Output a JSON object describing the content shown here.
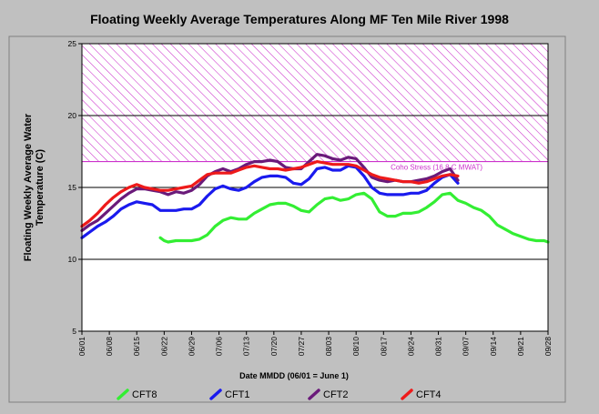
{
  "chart_data": {
    "type": "line",
    "title": "Floating Weekly Average Temperatures Along MF Ten Mile River 1998",
    "xlabel": "Date MMDD (06/01 = June 1)",
    "ylabel": "Floating Weekly Average Water Temperature (C)",
    "x_ticks": [
      "06/01",
      "06/08",
      "06/15",
      "06/22",
      "06/29",
      "07/06",
      "07/13",
      "07/20",
      "07/27",
      "08/03",
      "08/10",
      "08/17",
      "08/24",
      "08/31",
      "09/07",
      "09/14",
      "09/21",
      "09/28"
    ],
    "xlim": [
      0,
      119
    ],
    "ylim": [
      5,
      25
    ],
    "y_ticks": [
      5,
      10,
      15,
      20,
      25
    ],
    "grid_y": [
      10,
      15,
      20
    ],
    "threshold": {
      "label": "Coho Stress (16.8 C MWAT)",
      "value": 16.8,
      "color": "#cc33cc"
    },
    "hatched_band": [
      16.8,
      25
    ],
    "legend_position": "bottom",
    "series": [
      {
        "name": "CFT8",
        "color": "#33ee33",
        "x": [
          20,
          21,
          22,
          24,
          26,
          28,
          30,
          32,
          34,
          36,
          38,
          40,
          42,
          44,
          46,
          48,
          50,
          52,
          54,
          56,
          58,
          60,
          62,
          64,
          66,
          68,
          70,
          72,
          74,
          76,
          78,
          80,
          82,
          84,
          86,
          88,
          90,
          92,
          94,
          96,
          98,
          100,
          102,
          104,
          106,
          108,
          110,
          112,
          114,
          116,
          118,
          119
        ],
        "y": [
          11.5,
          11.3,
          11.2,
          11.3,
          11.3,
          11.3,
          11.4,
          11.7,
          12.3,
          12.7,
          12.9,
          12.8,
          12.8,
          13.2,
          13.5,
          13.8,
          13.9,
          13.9,
          13.7,
          13.4,
          13.3,
          13.8,
          14.2,
          14.3,
          14.1,
          14.2,
          14.5,
          14.6,
          14.2,
          13.3,
          13.0,
          13.0,
          13.2,
          13.2,
          13.3,
          13.6,
          14.0,
          14.5,
          14.6,
          14.1,
          13.9,
          13.6,
          13.4,
          13.0,
          12.4,
          12.1,
          11.8,
          11.6,
          11.4,
          11.3,
          11.3,
          11.2
        ]
      },
      {
        "name": "CFT1",
        "color": "#1a1aee",
        "x": [
          0,
          2,
          4,
          6,
          8,
          10,
          12,
          14,
          16,
          18,
          20,
          22,
          24,
          26,
          28,
          30,
          32,
          34,
          36,
          38,
          40,
          42,
          44,
          46,
          48,
          50,
          52,
          54,
          56,
          58,
          60,
          62,
          64,
          66,
          68,
          70,
          72,
          74,
          76,
          78,
          80,
          82,
          84,
          86,
          88,
          90,
          92,
          94,
          96
        ],
        "y": [
          11.5,
          11.9,
          12.3,
          12.6,
          13.0,
          13.5,
          13.8,
          14.0,
          13.9,
          13.8,
          13.4,
          13.4,
          13.4,
          13.5,
          13.5,
          13.8,
          14.4,
          14.9,
          15.1,
          14.9,
          14.8,
          15.0,
          15.4,
          15.7,
          15.8,
          15.8,
          15.7,
          15.3,
          15.2,
          15.6,
          16.3,
          16.4,
          16.2,
          16.2,
          16.5,
          16.4,
          15.8,
          15.0,
          14.6,
          14.5,
          14.5,
          14.5,
          14.6,
          14.6,
          14.8,
          15.3,
          15.7,
          15.9,
          15.3
        ]
      },
      {
        "name": "CFT2",
        "color": "#6a1a7a",
        "x": [
          0,
          2,
          4,
          6,
          8,
          10,
          12,
          14,
          16,
          18,
          20,
          22,
          24,
          26,
          28,
          30,
          32,
          34,
          36,
          38,
          40,
          42,
          44,
          46,
          48,
          50,
          52,
          54,
          56,
          58,
          60,
          62,
          64,
          66,
          68,
          70,
          72,
          74,
          76,
          78,
          80,
          82,
          84,
          86,
          88,
          90,
          92,
          94,
          96
        ],
        "y": [
          12.0,
          12.4,
          12.7,
          13.2,
          13.7,
          14.2,
          14.6,
          14.9,
          14.9,
          14.8,
          14.7,
          14.5,
          14.7,
          14.6,
          14.8,
          15.2,
          15.8,
          16.1,
          16.3,
          16.1,
          16.3,
          16.6,
          16.8,
          16.8,
          16.9,
          16.8,
          16.4,
          16.3,
          16.3,
          16.8,
          17.3,
          17.2,
          17.0,
          16.9,
          17.1,
          17.0,
          16.4,
          15.7,
          15.5,
          15.4,
          15.5,
          15.4,
          15.4,
          15.5,
          15.6,
          15.8,
          16.1,
          16.3,
          15.5
        ]
      },
      {
        "name": "CFT4",
        "color": "#ee1a1a",
        "x": [
          0,
          2,
          4,
          6,
          8,
          10,
          12,
          14,
          16,
          18,
          20,
          22,
          24,
          26,
          28,
          30,
          32,
          34,
          36,
          38,
          40,
          42,
          44,
          46,
          48,
          50,
          52,
          54,
          56,
          58,
          60,
          62,
          64,
          66,
          68,
          70,
          72,
          74,
          76,
          78,
          80,
          82,
          84,
          86,
          88,
          90,
          92,
          94,
          96
        ],
        "y": [
          12.3,
          12.7,
          13.2,
          13.8,
          14.3,
          14.7,
          15.0,
          15.2,
          15.0,
          14.9,
          14.8,
          14.8,
          14.9,
          15.0,
          15.1,
          15.5,
          15.9,
          16.0,
          16.0,
          16.0,
          16.2,
          16.4,
          16.5,
          16.4,
          16.3,
          16.3,
          16.2,
          16.3,
          16.4,
          16.6,
          16.8,
          16.7,
          16.6,
          16.6,
          16.6,
          16.5,
          16.2,
          15.9,
          15.7,
          15.6,
          15.5,
          15.4,
          15.4,
          15.3,
          15.4,
          15.6,
          15.8,
          15.9,
          15.8
        ]
      }
    ]
  }
}
